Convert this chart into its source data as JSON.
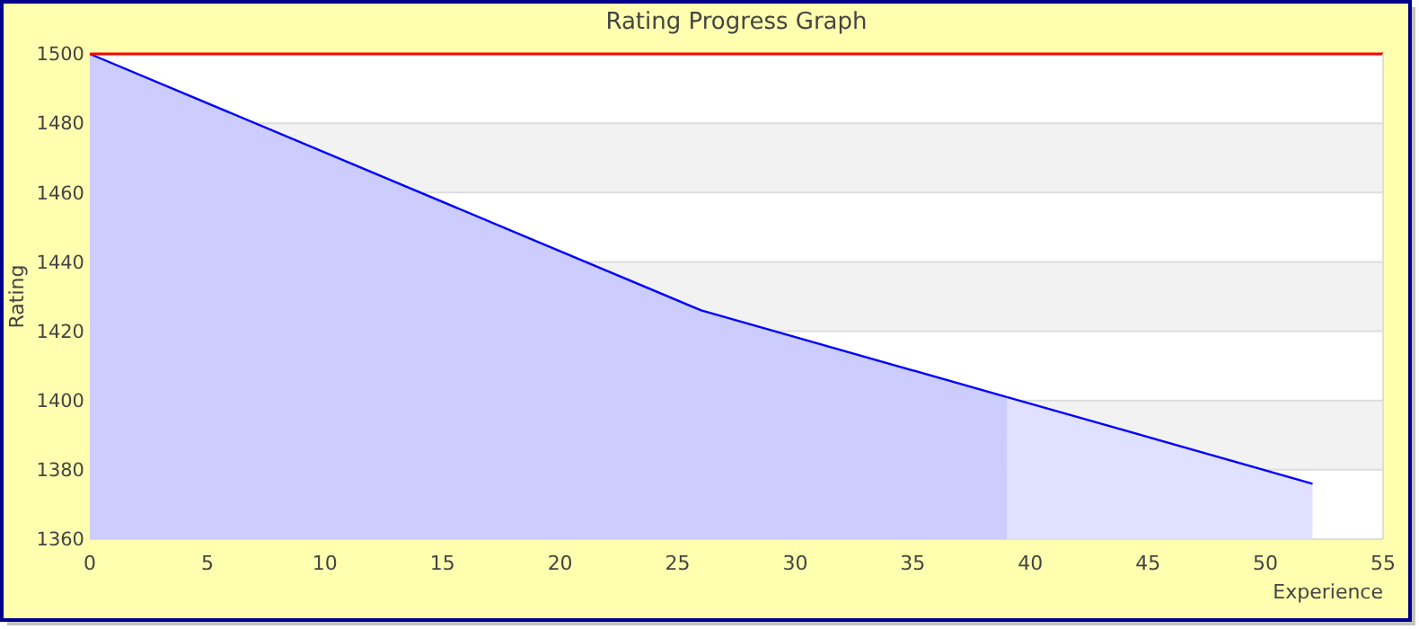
{
  "chart_data": {
    "type": "area",
    "title": "Rating Progress Graph",
    "xlabel": "Experience",
    "ylabel": "Rating",
    "series": [
      {
        "color": "#ccccff",
        "x": [
          0,
          26,
          39
        ],
        "values": [
          1500,
          1426,
          1401
        ]
      },
      {
        "color": "#e0e0ff",
        "x": [
          39,
          52
        ],
        "values": [
          1401,
          1376
        ]
      }
    ],
    "xlim": [
      0,
      55
    ],
    "xticks": [
      0,
      5,
      10,
      15,
      20,
      25,
      30,
      35,
      40,
      45,
      50,
      55
    ],
    "ylim": [
      1360,
      1500
    ],
    "yticks": [
      1360,
      1380,
      1400,
      1420,
      1440,
      1460,
      1480,
      1500
    ],
    "grid": "y",
    "ref_lines": [
      {
        "axis": "y",
        "value": 1500,
        "color": "#ff0000"
      }
    ]
  }
}
